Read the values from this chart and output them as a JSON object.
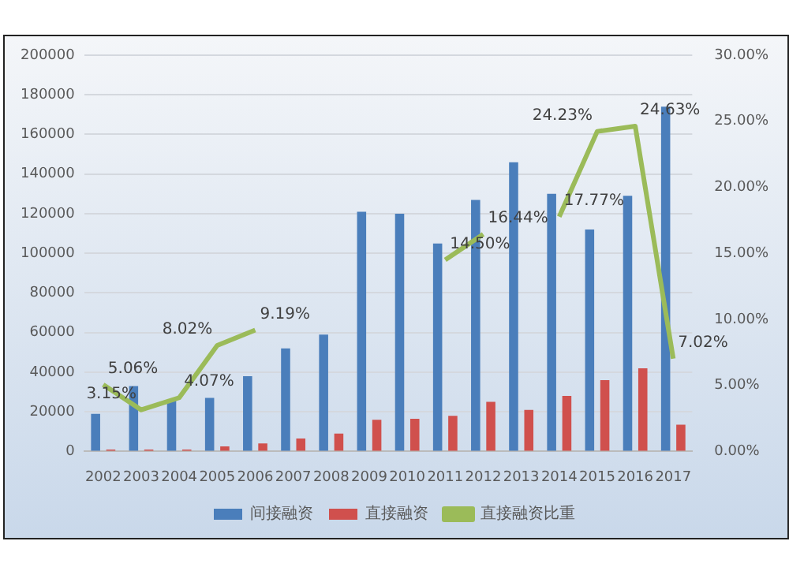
{
  "chart_data": {
    "type": "bar",
    "categories": [
      "2002",
      "2003",
      "2004",
      "2005",
      "2006",
      "2007",
      "2008",
      "2009",
      "2010",
      "2011",
      "2012",
      "2013",
      "2014",
      "2015",
      "2016",
      "2017"
    ],
    "series": [
      {
        "name": "间接融资",
        "color": "#4a7ebb",
        "values": [
          19000,
          33000,
          26000,
          27000,
          38000,
          52000,
          59000,
          121000,
          120000,
          105000,
          127000,
          146000,
          130000,
          112000,
          129000,
          174000
        ]
      },
      {
        "name": "直接融资",
        "color": "#d0504d",
        "values": [
          1000,
          1000,
          1000,
          2500,
          4000,
          6500,
          9000,
          16000,
          16500,
          18000,
          25000,
          21000,
          28000,
          36000,
          42000,
          13500
        ]
      },
      {
        "name": "直接融资比重",
        "type": "line",
        "axis": "y2",
        "color": "#9bbb59",
        "marker": "none",
        "values": [
          5.06,
          3.15,
          4.07,
          8.02,
          9.19,
          null,
          null,
          null,
          null,
          14.5,
          16.44,
          null,
          17.77,
          24.23,
          24.63,
          7.02
        ],
        "value_labels": [
          "5.06%",
          "3.15%",
          "4.07%",
          "8.02%",
          "9.19%",
          null,
          null,
          null,
          null,
          "14.50%",
          "16.44%",
          null,
          "17.77%",
          "24.23%",
          "24.63%",
          "7.02%"
        ]
      }
    ],
    "ylim": [
      0,
      200000
    ],
    "yticks": [
      0,
      20000,
      40000,
      60000,
      80000,
      100000,
      120000,
      140000,
      160000,
      180000,
      200000
    ],
    "y2lim": [
      0,
      30
    ],
    "y2ticks": [
      {
        "value": 0,
        "label": "0.00%"
      },
      {
        "value": 5,
        "label": "5.00%"
      },
      {
        "value": 10,
        "label": "10.00%"
      },
      {
        "value": 15,
        "label": "15.00%"
      },
      {
        "value": 20,
        "label": "20.00%"
      },
      {
        "value": 25,
        "label": "25.00%"
      },
      {
        "value": 30,
        "label": "30.00%"
      }
    ],
    "grid": "y",
    "legend": "bottom"
  }
}
